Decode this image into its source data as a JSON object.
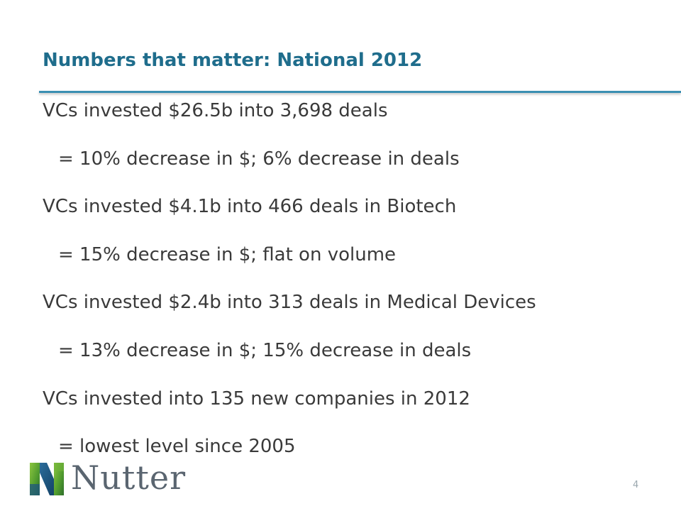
{
  "slide": {
    "title": "Numbers that matter: National 2012",
    "lines": [
      {
        "text": "VCs invested $26.5b into 3,698 deals",
        "level": 1
      },
      {
        "text": "= 10% decrease in $; 6% decrease in deals",
        "level": 2
      },
      {
        "text": "VCs invested $4.1b into 466 deals in Biotech",
        "level": 1
      },
      {
        "text": "= 15% decrease in $; flat on volume",
        "level": 2
      },
      {
        "text": "VCs invested $2.4b into 313 deals in Medical Devices",
        "level": 1
      },
      {
        "text": "= 13% decrease in $; 15% decrease in deals",
        "level": 2
      },
      {
        "text": "VCs invested into 135 new companies in 2012",
        "level": 1
      },
      {
        "text": "= lowest level since 2005",
        "level": 2
      }
    ],
    "logo_text": "Nutter",
    "page_number": "4"
  },
  "colors": {
    "title": "#1f6d8c",
    "rule": "#3b8fb2",
    "body_text": "#3a3a3a",
    "logo_text": "#5a6570",
    "page_number": "#9aa7ae"
  }
}
